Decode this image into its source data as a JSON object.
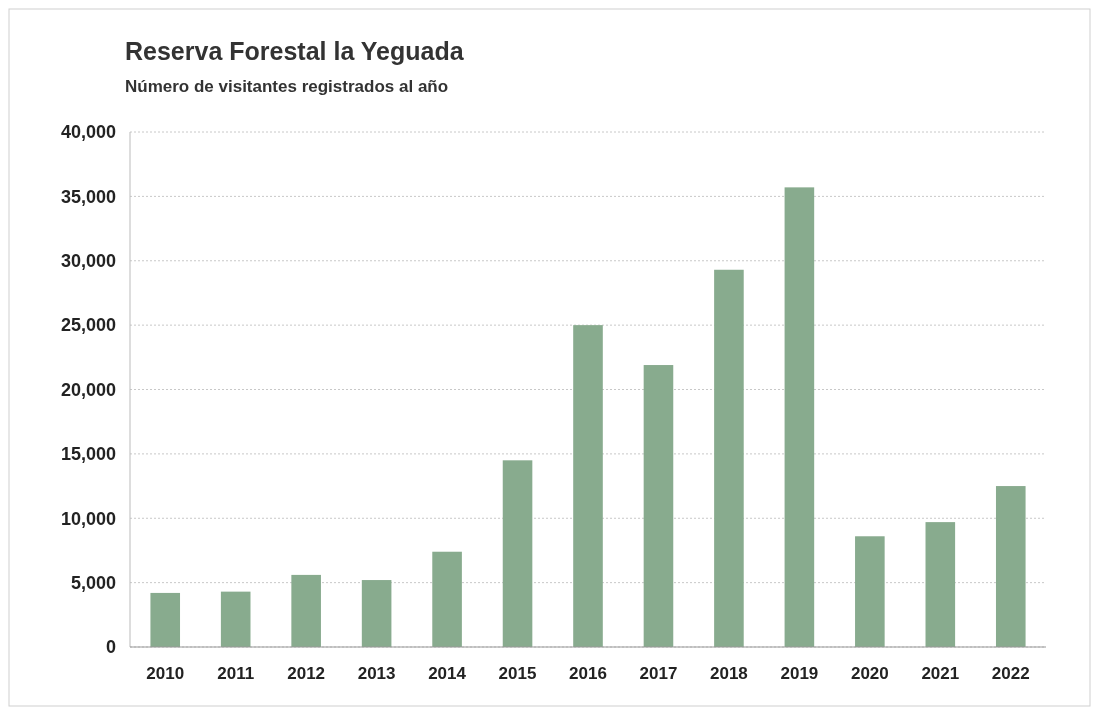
{
  "chart_data": {
    "type": "bar",
    "title": "Reserva Forestal la Yeguada",
    "subtitle": "Número de visitantes registrados al año",
    "categories": [
      "2010",
      "2011",
      "2012",
      "2013",
      "2014",
      "2015",
      "2016",
      "2017",
      "2018",
      "2019",
      "2020",
      "2021",
      "2022"
    ],
    "values": [
      4200,
      4300,
      5600,
      5200,
      7400,
      14500,
      25000,
      21900,
      29300,
      35700,
      8600,
      9700,
      12500
    ],
    "color": "#88ab8e",
    "ylim": [
      0,
      40000
    ],
    "yticks": [
      {
        "value": 0,
        "label": "0"
      },
      {
        "value": 5000,
        "label": "5,000"
      },
      {
        "value": 10000,
        "label": "10,000"
      },
      {
        "value": 15000,
        "label": "15,000"
      },
      {
        "value": 20000,
        "label": "20,000"
      },
      {
        "value": 25000,
        "label": "25,000"
      },
      {
        "value": 30000,
        "label": "30,000"
      },
      {
        "value": 35000,
        "label": "35,000"
      },
      {
        "value": 40000,
        "label": "40,000"
      }
    ],
    "grid": "y"
  }
}
